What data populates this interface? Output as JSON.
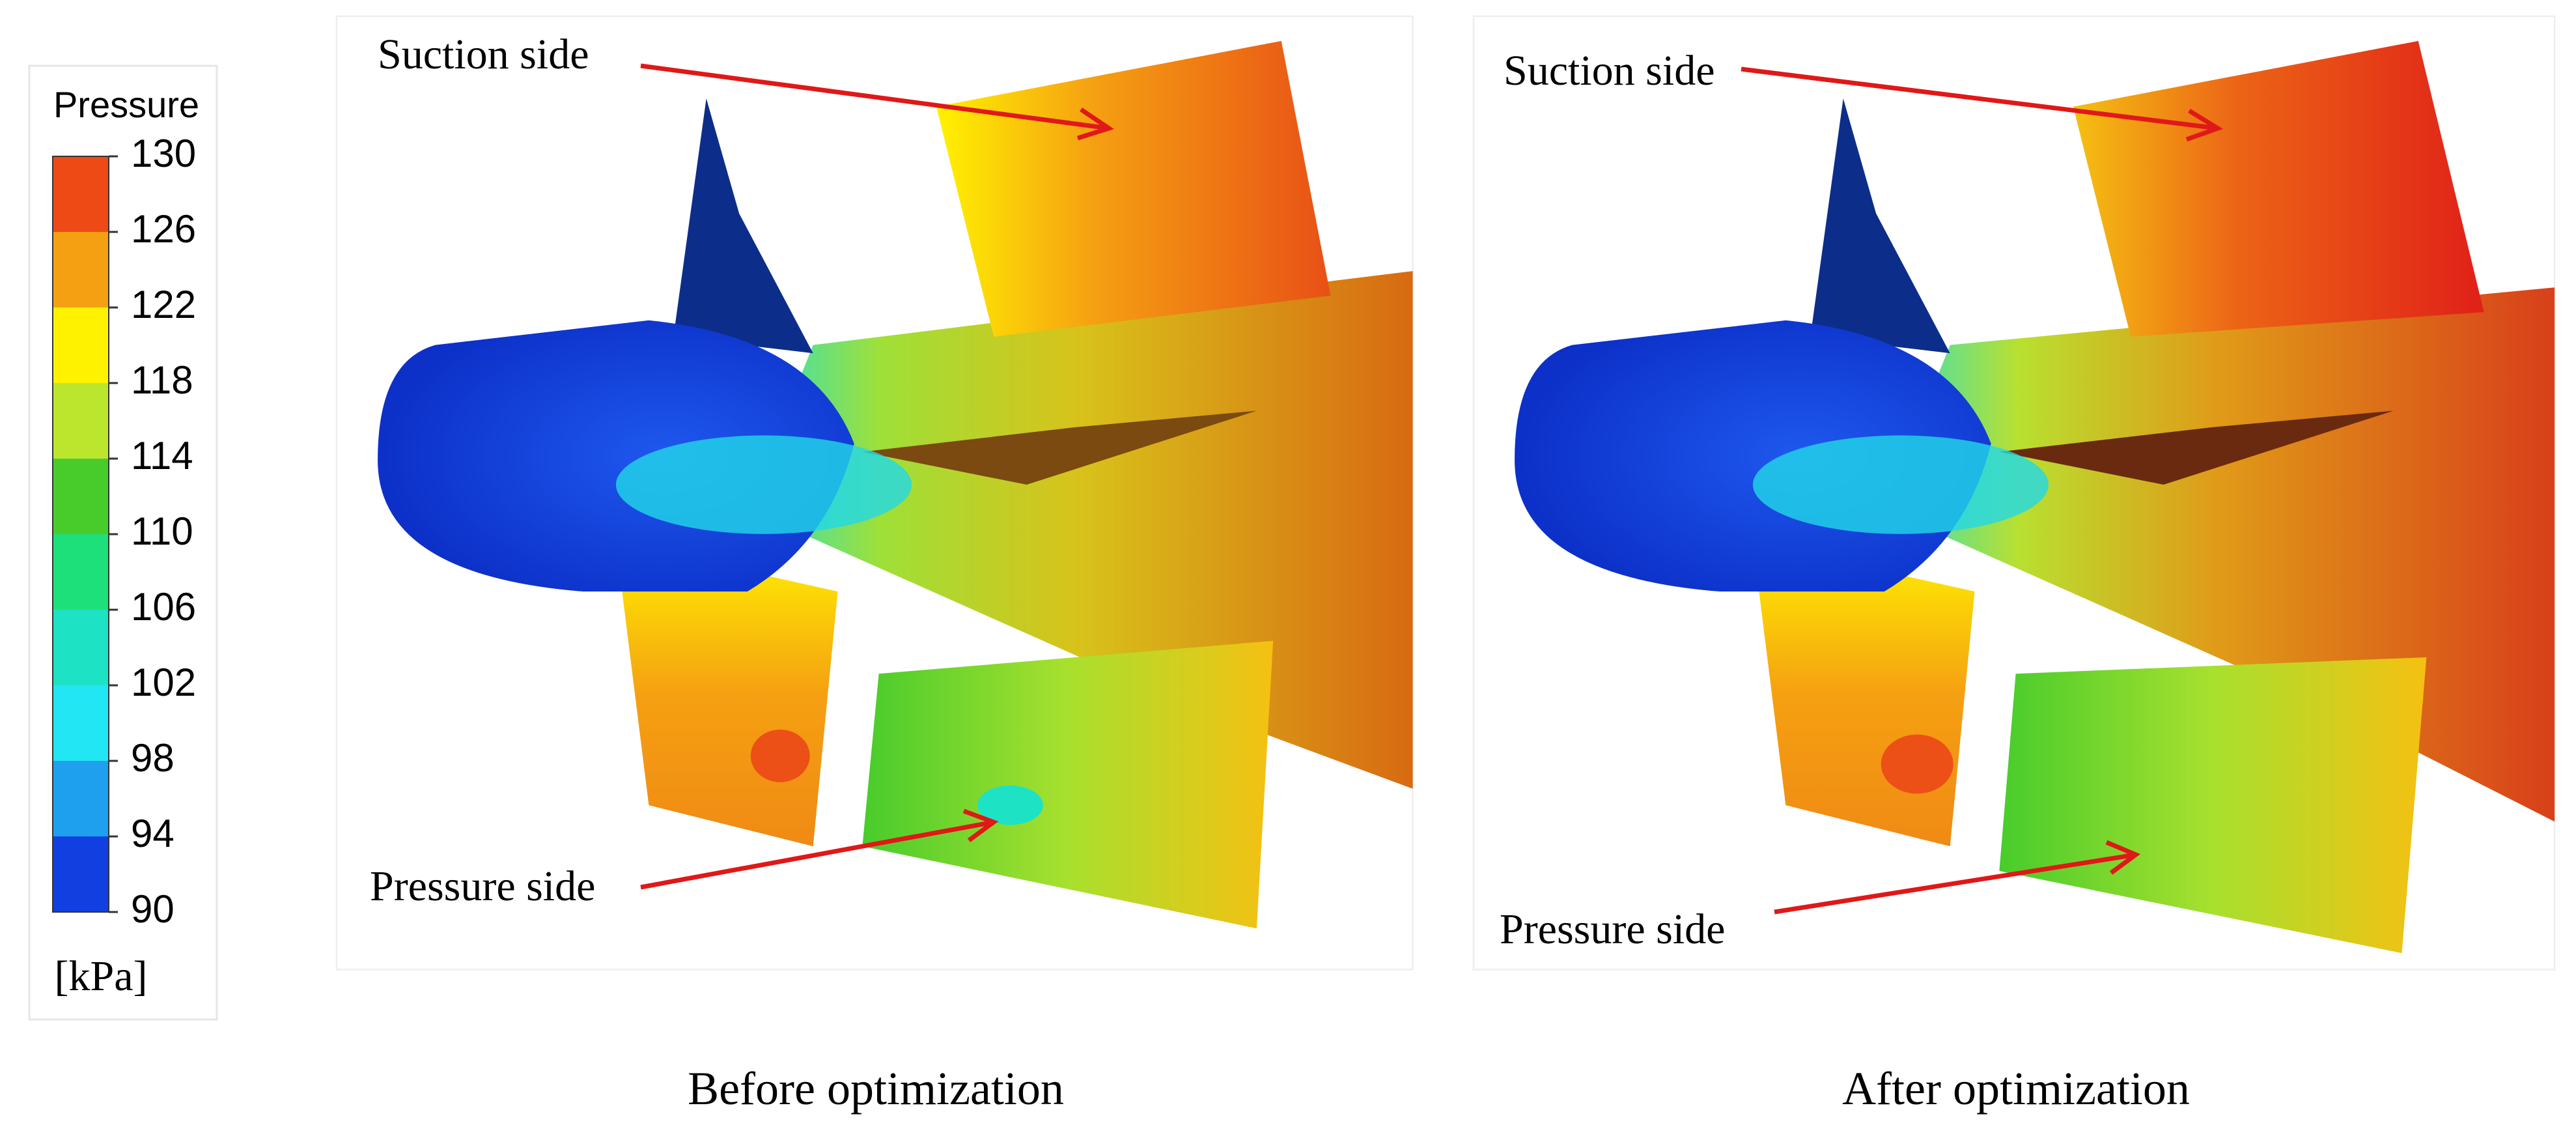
{
  "legend": {
    "title": "Pressure",
    "ticks": [
      130,
      126,
      122,
      118,
      114,
      110,
      106,
      102,
      98,
      94,
      90
    ],
    "unit": "[kPa]",
    "colors": [
      "#ee4a16",
      "#f5a012",
      "#fff200",
      "#bce62e",
      "#48cc2c",
      "#1ee07a",
      "#1ee2c4",
      "#22e6f4",
      "#1ea0ee",
      "#1240e0"
    ]
  },
  "panels": [
    {
      "suction_label": "Suction side",
      "pressure_label": "Pressure side",
      "caption": "Before optimization"
    },
    {
      "suction_label": "Suction side",
      "pressure_label": "Pressure side",
      "caption": "After optimization"
    }
  ]
}
